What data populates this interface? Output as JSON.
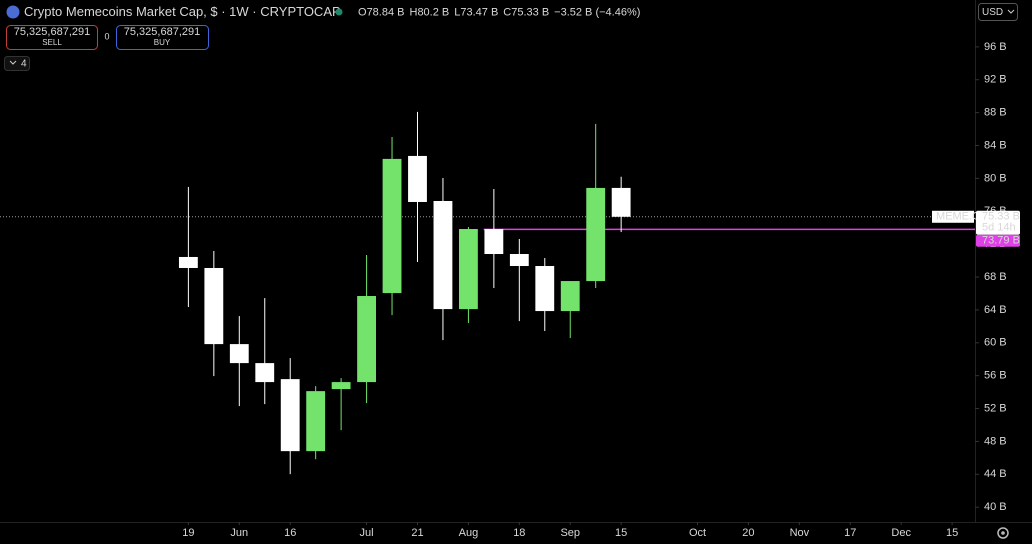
{
  "header": {
    "title": "Crypto Memecoins Market Cap, $ · 1W · CRYPTOCAP",
    "ohlc": [
      {
        "key": "O",
        "value": "78.84 B"
      },
      {
        "key": "H",
        "value": "80.2 B"
      },
      {
        "key": "L",
        "value": "73.47 B"
      },
      {
        "key": "C",
        "value": "75.33 B"
      }
    ],
    "change": "−3.52 B (−4.46%)",
    "sell": {
      "price": "75,325,687,291",
      "label": "SELL"
    },
    "spread": "0",
    "buy": {
      "price": "75,325,687,291",
      "label": "BUY"
    },
    "indicators": "4",
    "currency": "USD"
  },
  "chart_data": {
    "type": "candlestick",
    "x": [
      0,
      1,
      2,
      3,
      4,
      5,
      6,
      7,
      8,
      9,
      10,
      11,
      12,
      13,
      14,
      15,
      16,
      17
    ],
    "open": [
      70.44,
      69.1,
      59.84,
      57.53,
      55.58,
      46.82,
      54.37,
      55.22,
      66.05,
      82.73,
      77.25,
      64.1,
      73.84,
      70.8,
      69.34,
      63.86,
      67.51,
      78.84
    ],
    "high": [
      78.96,
      71.17,
      63.25,
      65.44,
      58.14,
      54.73,
      55.7,
      70.68,
      85.04,
      88.09,
      80.05,
      74.09,
      78.71,
      72.63,
      70.31,
      67.51,
      86.63,
      80.2
    ],
    "low": [
      64.35,
      55.95,
      52.3,
      52.54,
      44.02,
      45.84,
      49.37,
      52.66,
      63.37,
      69.83,
      60.33,
      62.4,
      66.66,
      62.64,
      61.43,
      60.57,
      66.66,
      73.47
    ],
    "close": [
      69.1,
      59.84,
      57.53,
      55.22,
      46.82,
      54.12,
      55.22,
      65.69,
      82.37,
      77.13,
      64.1,
      73.84,
      70.8,
      69.34,
      63.86,
      67.51,
      78.84,
      75.33
    ],
    "up_color": "#74e36c",
    "down_color": "#ffffff",
    "xlim": [
      -7.4,
      30.9
    ],
    "xticks": [
      {
        "value": 0,
        "label": "19"
      },
      {
        "value": 2,
        "label": "Jun"
      },
      {
        "value": 4,
        "label": "16"
      },
      {
        "value": 7,
        "label": "Jul"
      },
      {
        "value": 9,
        "label": "21"
      },
      {
        "value": 11,
        "label": "Aug"
      },
      {
        "value": 13,
        "label": "18"
      },
      {
        "value": 15,
        "label": "Sep"
      },
      {
        "value": 17,
        "label": "15"
      },
      {
        "value": 20,
        "label": "Oct"
      },
      {
        "value": 22,
        "label": "20"
      },
      {
        "value": 24,
        "label": "Nov"
      },
      {
        "value": 26,
        "label": "17"
      },
      {
        "value": 28,
        "label": "Dec"
      },
      {
        "value": 30,
        "label": "15"
      }
    ],
    "ylim": [
      38.2,
      101.7
    ],
    "yticks": [
      {
        "value": 40,
        "label": "40 B"
      },
      {
        "value": 44,
        "label": "44 B"
      },
      {
        "value": 48,
        "label": "48 B"
      },
      {
        "value": 52,
        "label": "52 B"
      },
      {
        "value": 56,
        "label": "56 B"
      },
      {
        "value": 60,
        "label": "60 B"
      },
      {
        "value": 64,
        "label": "64 B"
      },
      {
        "value": 68,
        "label": "68 B"
      },
      {
        "value": 72,
        "label": "72 B"
      },
      {
        "value": 76,
        "label": "76 B"
      },
      {
        "value": 80,
        "label": "80 B"
      },
      {
        "value": 84,
        "label": "84 B"
      },
      {
        "value": 88,
        "label": "88 B"
      },
      {
        "value": 92,
        "label": "92 B"
      },
      {
        "value": 96,
        "label": "96 B"
      }
    ],
    "grid": false,
    "price_line": {
      "name": "MEME.C",
      "value": 75.33,
      "label": "75.33 B",
      "countdown": "5d 14h"
    },
    "level_line": {
      "value": 73.79,
      "label": "73.79 B",
      "color": "#e040e8"
    }
  }
}
